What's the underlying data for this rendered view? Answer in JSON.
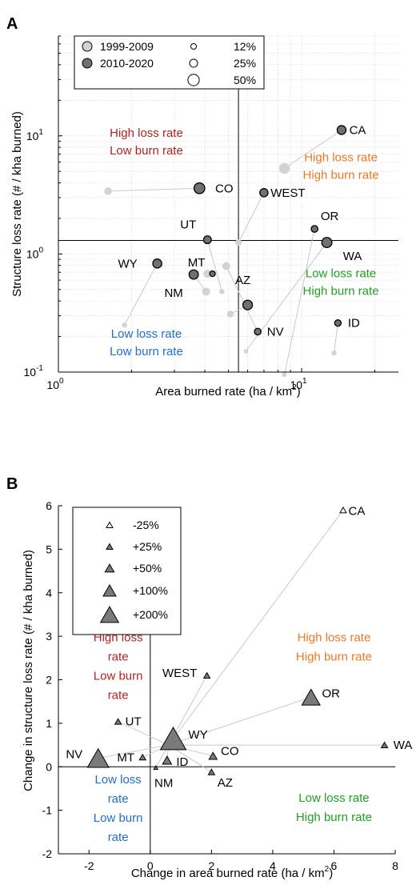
{
  "chart_data": [
    {
      "type": "scatter",
      "panel_label": "A",
      "xlabel": "Area burned rate (ha / km",
      "xlabel_sup": "2",
      "xlabel_end": ")",
      "ylabel": "Structure loss rate (# / kha burned)",
      "xscale": "log",
      "yscale": "log",
      "xlim": [
        1,
        25
      ],
      "ylim": [
        0.1,
        70
      ],
      "x_ticks": [
        {
          "v": 1,
          "base": "10",
          "exp": "0"
        },
        {
          "v": 10,
          "base": "10",
          "exp": "1"
        }
      ],
      "y_ticks": [
        {
          "v": 0.1,
          "base": "10",
          "exp": "-1"
        },
        {
          "v": 1,
          "base": "10",
          "exp": "0"
        },
        {
          "v": 10,
          "base": "10",
          "exp": "1"
        }
      ],
      "grid": "on",
      "reference_lines": {
        "x": 5.5,
        "y": 1.3
      },
      "colors": {
        "period1": "#d3d3d3",
        "period2": "#707070",
        "line": "#c9c9c9"
      },
      "legend": {
        "placement": "top",
        "items": [
          {
            "label": "1999-2009",
            "kind": "fill",
            "period": 1
          },
          {
            "label": "2010-2020",
            "kind": "fill",
            "period": 2
          },
          {
            "label": "12%",
            "kind": "size",
            "share": 0.12
          },
          {
            "label": "25%",
            "kind": "size",
            "share": 0.25
          },
          {
            "label": "50%",
            "kind": "size",
            "share": 0.5
          }
        ]
      },
      "quadrant_labels": [
        {
          "line1": "High loss rate",
          "line2": "Low burn rate",
          "color": "#b22222",
          "x": 2.3,
          "y": 8.5
        },
        {
          "line1": "High loss rate",
          "line2": "High burn rate",
          "color": "#ee7722",
          "x": 14.5,
          "y": 5.3
        },
        {
          "line1": "Low loss rate",
          "line2": "High burn rate",
          "color": "#22a022",
          "x": 14.5,
          "y": 0.55
        },
        {
          "line1": "Low loss rate",
          "line2": "Low burn rate",
          "color": "#1e6fd0",
          "x": 2.3,
          "y": 0.17
        }
      ],
      "series": [
        {
          "name": "1999-2009",
          "points": [
            {
              "id": "CA",
              "x": 8.5,
              "y": 5.3,
              "share": 0.45
            },
            {
              "id": "CO",
              "x": 1.6,
              "y": 3.4,
              "share": 0.22
            },
            {
              "id": "WEST",
              "x": 5.5,
              "y": 1.25,
              "share": 0.16
            },
            {
              "id": "UT",
              "x": 4.7,
              "y": 0.48,
              "share": 0.1
            },
            {
              "id": "OR",
              "x": 8.5,
              "y": 0.095,
              "share": 0.08
            },
            {
              "id": "WA",
              "x": 5.9,
              "y": 0.15,
              "share": 0.08
            },
            {
              "id": "WY",
              "x": 1.87,
              "y": 0.25,
              "share": 0.1
            },
            {
              "id": "MT",
              "x": 4.1,
              "y": 0.68,
              "share": 0.26
            },
            {
              "id": "NM",
              "x": 4.05,
              "y": 0.48,
              "share": 0.25
            },
            {
              "id": "AZ",
              "x": 5.1,
              "y": 0.31,
              "share": 0.18
            },
            {
              "id": "NV",
              "x": 4.9,
              "y": 0.79,
              "share": 0.24
            },
            {
              "id": "ID",
              "x": 13.6,
              "y": 0.145,
              "share": 0.1
            }
          ]
        },
        {
          "name": "2010-2020",
          "points": [
            {
              "id": "CA",
              "x": 14.6,
              "y": 11.2,
              "share": 0.3,
              "label": "CA",
              "lx": 20,
              "ly": 0
            },
            {
              "id": "CO",
              "x": 3.8,
              "y": 3.6,
              "share": 0.44,
              "label": "CO",
              "lx": 31,
              "ly": 0
            },
            {
              "id": "WEST",
              "x": 7.0,
              "y": 3.3,
              "share": 0.26,
              "label": "WEST",
              "lx": 30,
              "ly": 0
            },
            {
              "id": "UT",
              "x": 4.1,
              "y": 1.32,
              "share": 0.23,
              "label": "UT",
              "lx": -24,
              "ly": -19
            },
            {
              "id": "OR",
              "x": 11.3,
              "y": 1.63,
              "share": 0.17,
              "label": "OR",
              "lx": 19,
              "ly": -16
            },
            {
              "id": "WA",
              "x": 12.7,
              "y": 1.25,
              "share": 0.39,
              "label": "WA",
              "lx": 32,
              "ly": 17
            },
            {
              "id": "WY",
              "x": 2.55,
              "y": 0.83,
              "share": 0.31,
              "label": "WY",
              "lx": -37,
              "ly": 0
            },
            {
              "id": "MT",
              "x": 4.3,
              "y": 0.68,
              "share": 0.12,
              "label": "MT",
              "lx": -20,
              "ly": -14
            },
            {
              "id": "NM",
              "x": 3.6,
              "y": 0.67,
              "share": 0.33,
              "label": "NM",
              "lx": -25,
              "ly": 23
            },
            {
              "id": "AZ",
              "x": 6.0,
              "y": 0.37,
              "share": 0.35,
              "label": "AZ",
              "lx": -6,
              "ly": -31
            },
            {
              "id": "NV",
              "x": 6.6,
              "y": 0.22,
              "share": 0.17,
              "label": "NV",
              "lx": 22,
              "ly": 0
            },
            {
              "id": "ID",
              "x": 14.1,
              "y": 0.26,
              "share": 0.16,
              "label": "ID",
              "lx": 20,
              "ly": 0
            }
          ]
        }
      ]
    },
    {
      "type": "scatter",
      "panel_label": "B",
      "xlabel": "Change in area burned rate (ha / km",
      "xlabel_sup": "2",
      "xlabel_end": ")",
      "ylabel": "Change in structure loss rate (# / kha burned)",
      "xlim": [
        -3,
        8
      ],
      "ylim": [
        -2,
        6
      ],
      "x_ticks": [
        -2,
        0,
        2,
        4,
        6,
        8
      ],
      "y_ticks": [
        -2,
        -1,
        0,
        1,
        2,
        3,
        4,
        5,
        6
      ],
      "grid": "off",
      "reference_lines": {
        "x": 0,
        "y": 0
      },
      "colors": {
        "marker": "#7a7a7a",
        "marker_light": "#ffffff",
        "line": "#c9c9c9"
      },
      "legend": {
        "placement": "top-left",
        "items": [
          {
            "label": "-25%",
            "change": -25
          },
          {
            "label": "+25%",
            "change": 25
          },
          {
            "label": "+50%",
            "change": 50
          },
          {
            "label": "+100%",
            "change": 100
          },
          {
            "label": "+200%",
            "change": 200
          }
        ]
      },
      "quadrant_labels": [
        {
          "lines": [
            "High loss",
            "rate",
            "Low burn",
            "rate"
          ],
          "color": "#b22222",
          "x": -1.05,
          "y": 2.88
        },
        {
          "lines": [
            "High loss rate",
            "High burn rate"
          ],
          "color": "#ee7722",
          "x": 6.0,
          "y": 2.88
        },
        {
          "lines": [
            "Low loss",
            "rate",
            "Low burn",
            "rate"
          ],
          "color": "#1e6fd0",
          "x": -1.05,
          "y": -0.38
        },
        {
          "lines": [
            "Low loss rate",
            "High burn rate"
          ],
          "color": "#22a022",
          "x": 6.0,
          "y": -0.8
        }
      ],
      "hub": {
        "x": 0.6,
        "y": 0.5
      },
      "points": [
        {
          "id": "CA",
          "x": 6.3,
          "y": 5.9,
          "change": -25,
          "label": "CA",
          "lx": 17,
          "ly": 1
        },
        {
          "id": "WEST",
          "x": 1.85,
          "y": 2.1,
          "change": 25,
          "label": "WEST",
          "lx": -34,
          "ly": -3
        },
        {
          "id": "OR",
          "x": 5.25,
          "y": 1.6,
          "change": 200,
          "label": "OR",
          "lx": 25,
          "ly": -5
        },
        {
          "id": "UT",
          "x": -1.05,
          "y": 1.04,
          "change": 25,
          "label": "UT",
          "lx": 19,
          "ly": 0
        },
        {
          "id": "WY",
          "x": 0.75,
          "y": 0.65,
          "change": 400,
          "label": "WY",
          "lx": 31,
          "ly": -5
        },
        {
          "id": "WA",
          "x": 7.65,
          "y": 0.5,
          "change": 25,
          "label": "WA",
          "lx": 23,
          "ly": 0
        },
        {
          "id": "NV",
          "x": -1.7,
          "y": 0.2,
          "change": 280,
          "label": "NV",
          "lx": -30,
          "ly": -5
        },
        {
          "id": "MT",
          "x": -0.25,
          "y": 0.22,
          "change": 25,
          "label": "MT",
          "lx": -21,
          "ly": 0
        },
        {
          "id": "ID",
          "x": 0.55,
          "y": 0.15,
          "change": 50,
          "label": "ID",
          "lx": 19,
          "ly": 2
        },
        {
          "id": "CO",
          "x": 2.05,
          "y": 0.25,
          "change": 40,
          "label": "CO",
          "lx": 21,
          "ly": -6
        },
        {
          "id": "NM",
          "x": 0.18,
          "y": -0.02,
          "change": 10,
          "label": "NM",
          "lx": 10,
          "ly": 19
        },
        {
          "id": "AZ",
          "x": 2.0,
          "y": -0.12,
          "change": 25,
          "label": "AZ",
          "lx": 17,
          "ly": 13
        }
      ]
    }
  ]
}
